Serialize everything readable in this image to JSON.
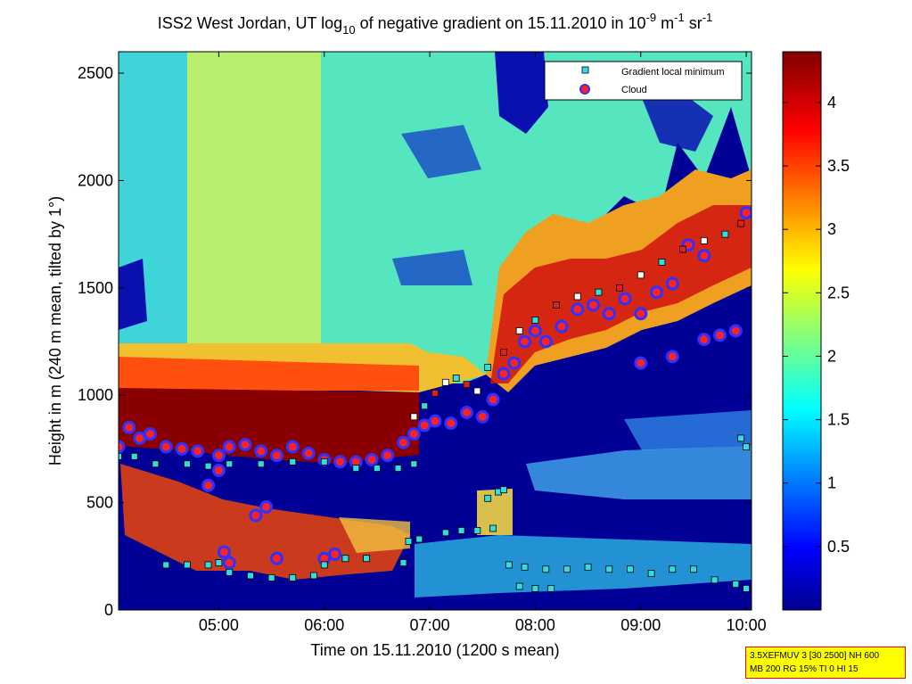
{
  "chart_data": {
    "type": "heatmap",
    "title_parts": {
      "a": "ISS2 West Jordan, UT log",
      "a_sub": "10",
      "b": " of negative gradient on 15.11.2010 in 10",
      "b_sup": "-9",
      "c": " m",
      "c_sup": "-1",
      "d": " sr",
      "d_sup": "-1"
    },
    "xlabel": "Time on 15.11.2010 (1200 s mean)",
    "ylabel": "Height in m (240 m mean, tilted by 1°)",
    "x_ticks": [
      "05:00",
      "06:00",
      "07:00",
      "08:00",
      "09:00",
      "10:00"
    ],
    "x_tick_hours": [
      5,
      6,
      7,
      8,
      9,
      10
    ],
    "xlim_hours": [
      4.05,
      10.05
    ],
    "y_ticks": [
      0,
      500,
      1000,
      1500,
      2000,
      2500
    ],
    "ylim": [
      0,
      2600
    ],
    "colorbar": {
      "ticks": [
        "0.5",
        "1",
        "1.5",
        "2",
        "2.5",
        "3",
        "3.5",
        "4"
      ],
      "tick_values": [
        0.5,
        1,
        1.5,
        2,
        2.5,
        3,
        3.5,
        4
      ],
      "range": [
        0,
        4.4
      ],
      "colormap": "jet"
    },
    "legend": {
      "placement": "top-right",
      "entries": [
        {
          "label": "Gradient local minimum",
          "marker": "square",
          "color": "#33dddd"
        },
        {
          "label": "Cloud",
          "marker": "circle",
          "color": "#ff2020",
          "edge": "#3030ff"
        }
      ]
    },
    "series": [
      {
        "name": "Gradient local minimum",
        "points": [
          [
            4.05,
            715
          ],
          [
            4.2,
            715
          ],
          [
            4.4,
            680
          ],
          [
            4.7,
            680
          ],
          [
            4.9,
            670
          ],
          [
            5.1,
            680
          ],
          [
            5.4,
            680
          ],
          [
            5.7,
            690
          ],
          [
            6.0,
            690
          ],
          [
            6.3,
            660
          ],
          [
            6.5,
            660
          ],
          [
            6.7,
            660
          ],
          [
            6.85,
            680
          ],
          [
            4.5,
            210
          ],
          [
            4.7,
            210
          ],
          [
            4.9,
            210
          ],
          [
            5.0,
            220
          ],
          [
            5.1,
            175
          ],
          [
            5.3,
            160
          ],
          [
            5.5,
            150
          ],
          [
            5.7,
            150
          ],
          [
            5.9,
            160
          ],
          [
            6.0,
            210
          ],
          [
            6.2,
            240
          ],
          [
            6.4,
            240
          ],
          [
            6.75,
            220
          ],
          [
            6.8,
            320
          ],
          [
            6.9,
            330
          ],
          [
            7.15,
            360
          ],
          [
            7.3,
            370
          ],
          [
            7.45,
            370
          ],
          [
            7.6,
            380
          ],
          [
            7.75,
            210
          ],
          [
            7.9,
            200
          ],
          [
            8.1,
            190
          ],
          [
            8.3,
            190
          ],
          [
            8.5,
            200
          ],
          [
            8.7,
            190
          ],
          [
            8.9,
            190
          ],
          [
            9.1,
            170
          ],
          [
            9.3,
            190
          ],
          [
            9.5,
            190
          ],
          [
            9.7,
            140
          ],
          [
            9.9,
            120
          ],
          [
            10.0,
            100
          ],
          [
            7.85,
            110
          ],
          [
            8.0,
            100
          ],
          [
            8.15,
            100
          ],
          [
            7.65,
            550
          ],
          [
            7.7,
            560
          ],
          [
            7.55,
            520
          ],
          [
            6.85,
            900
          ],
          [
            6.95,
            950
          ],
          [
            7.05,
            1010
          ],
          [
            7.15,
            1060
          ],
          [
            7.25,
            1080
          ],
          [
            7.35,
            1050
          ],
          [
            7.45,
            1020
          ],
          [
            7.55,
            1130
          ],
          [
            7.7,
            1200
          ],
          [
            7.85,
            1300
          ],
          [
            8.0,
            1350
          ],
          [
            8.2,
            1420
          ],
          [
            8.4,
            1460
          ],
          [
            8.6,
            1480
          ],
          [
            8.8,
            1500
          ],
          [
            9.0,
            1560
          ],
          [
            9.2,
            1620
          ],
          [
            9.4,
            1680
          ],
          [
            9.6,
            1720
          ],
          [
            9.8,
            1750
          ],
          [
            9.95,
            1800
          ],
          [
            10.0,
            760
          ],
          [
            9.95,
            800
          ]
        ]
      },
      {
        "name": "Cloud",
        "points": [
          [
            4.05,
            760
          ],
          [
            4.15,
            850
          ],
          [
            4.25,
            800
          ],
          [
            4.35,
            820
          ],
          [
            4.5,
            760
          ],
          [
            4.65,
            750
          ],
          [
            4.8,
            740
          ],
          [
            5.0,
            720
          ],
          [
            5.1,
            760
          ],
          [
            5.25,
            770
          ],
          [
            5.4,
            740
          ],
          [
            5.55,
            720
          ],
          [
            5.7,
            760
          ],
          [
            5.85,
            730
          ],
          [
            6.0,
            700
          ],
          [
            6.15,
            690
          ],
          [
            6.3,
            690
          ],
          [
            6.45,
            700
          ],
          [
            6.6,
            720
          ],
          [
            6.75,
            780
          ],
          [
            6.85,
            820
          ],
          [
            6.95,
            860
          ],
          [
            7.05,
            880
          ],
          [
            7.2,
            870
          ],
          [
            7.35,
            920
          ],
          [
            7.5,
            900
          ],
          [
            7.6,
            980
          ],
          [
            7.7,
            1100
          ],
          [
            7.8,
            1150
          ],
          [
            7.9,
            1250
          ],
          [
            8.0,
            1300
          ],
          [
            8.1,
            1250
          ],
          [
            8.25,
            1320
          ],
          [
            8.4,
            1400
          ],
          [
            8.55,
            1420
          ],
          [
            8.7,
            1380
          ],
          [
            8.85,
            1450
          ],
          [
            9.0,
            1380
          ],
          [
            9.15,
            1480
          ],
          [
            9.3,
            1520
          ],
          [
            9.45,
            1700
          ],
          [
            9.6,
            1650
          ],
          [
            9.75,
            1280
          ],
          [
            9.9,
            1300
          ],
          [
            10.0,
            1850
          ],
          [
            5.05,
            270
          ],
          [
            5.1,
            220
          ],
          [
            5.35,
            440
          ],
          [
            5.45,
            480
          ],
          [
            5.55,
            240
          ],
          [
            6.1,
            260
          ],
          [
            6.0,
            240
          ],
          [
            4.9,
            580
          ],
          [
            5.0,
            650
          ],
          [
            9.0,
            1150
          ],
          [
            9.3,
            1180
          ],
          [
            9.6,
            1260
          ]
        ]
      }
    ],
    "field_description_levels": {
      "lower_background": 0.2,
      "aerosol_layer_top_m": 1050,
      "upper_background": 2.3
    }
  },
  "info_box": {
    "line1": "3.5XEFMUV 3 [30 2500] NH 600",
    "line2": "MB 200 RG 15% TI 0 HI 15"
  },
  "colors": {
    "frame": "#000000",
    "info_bg": "#ffff00",
    "info_border": "#ff0000"
  }
}
